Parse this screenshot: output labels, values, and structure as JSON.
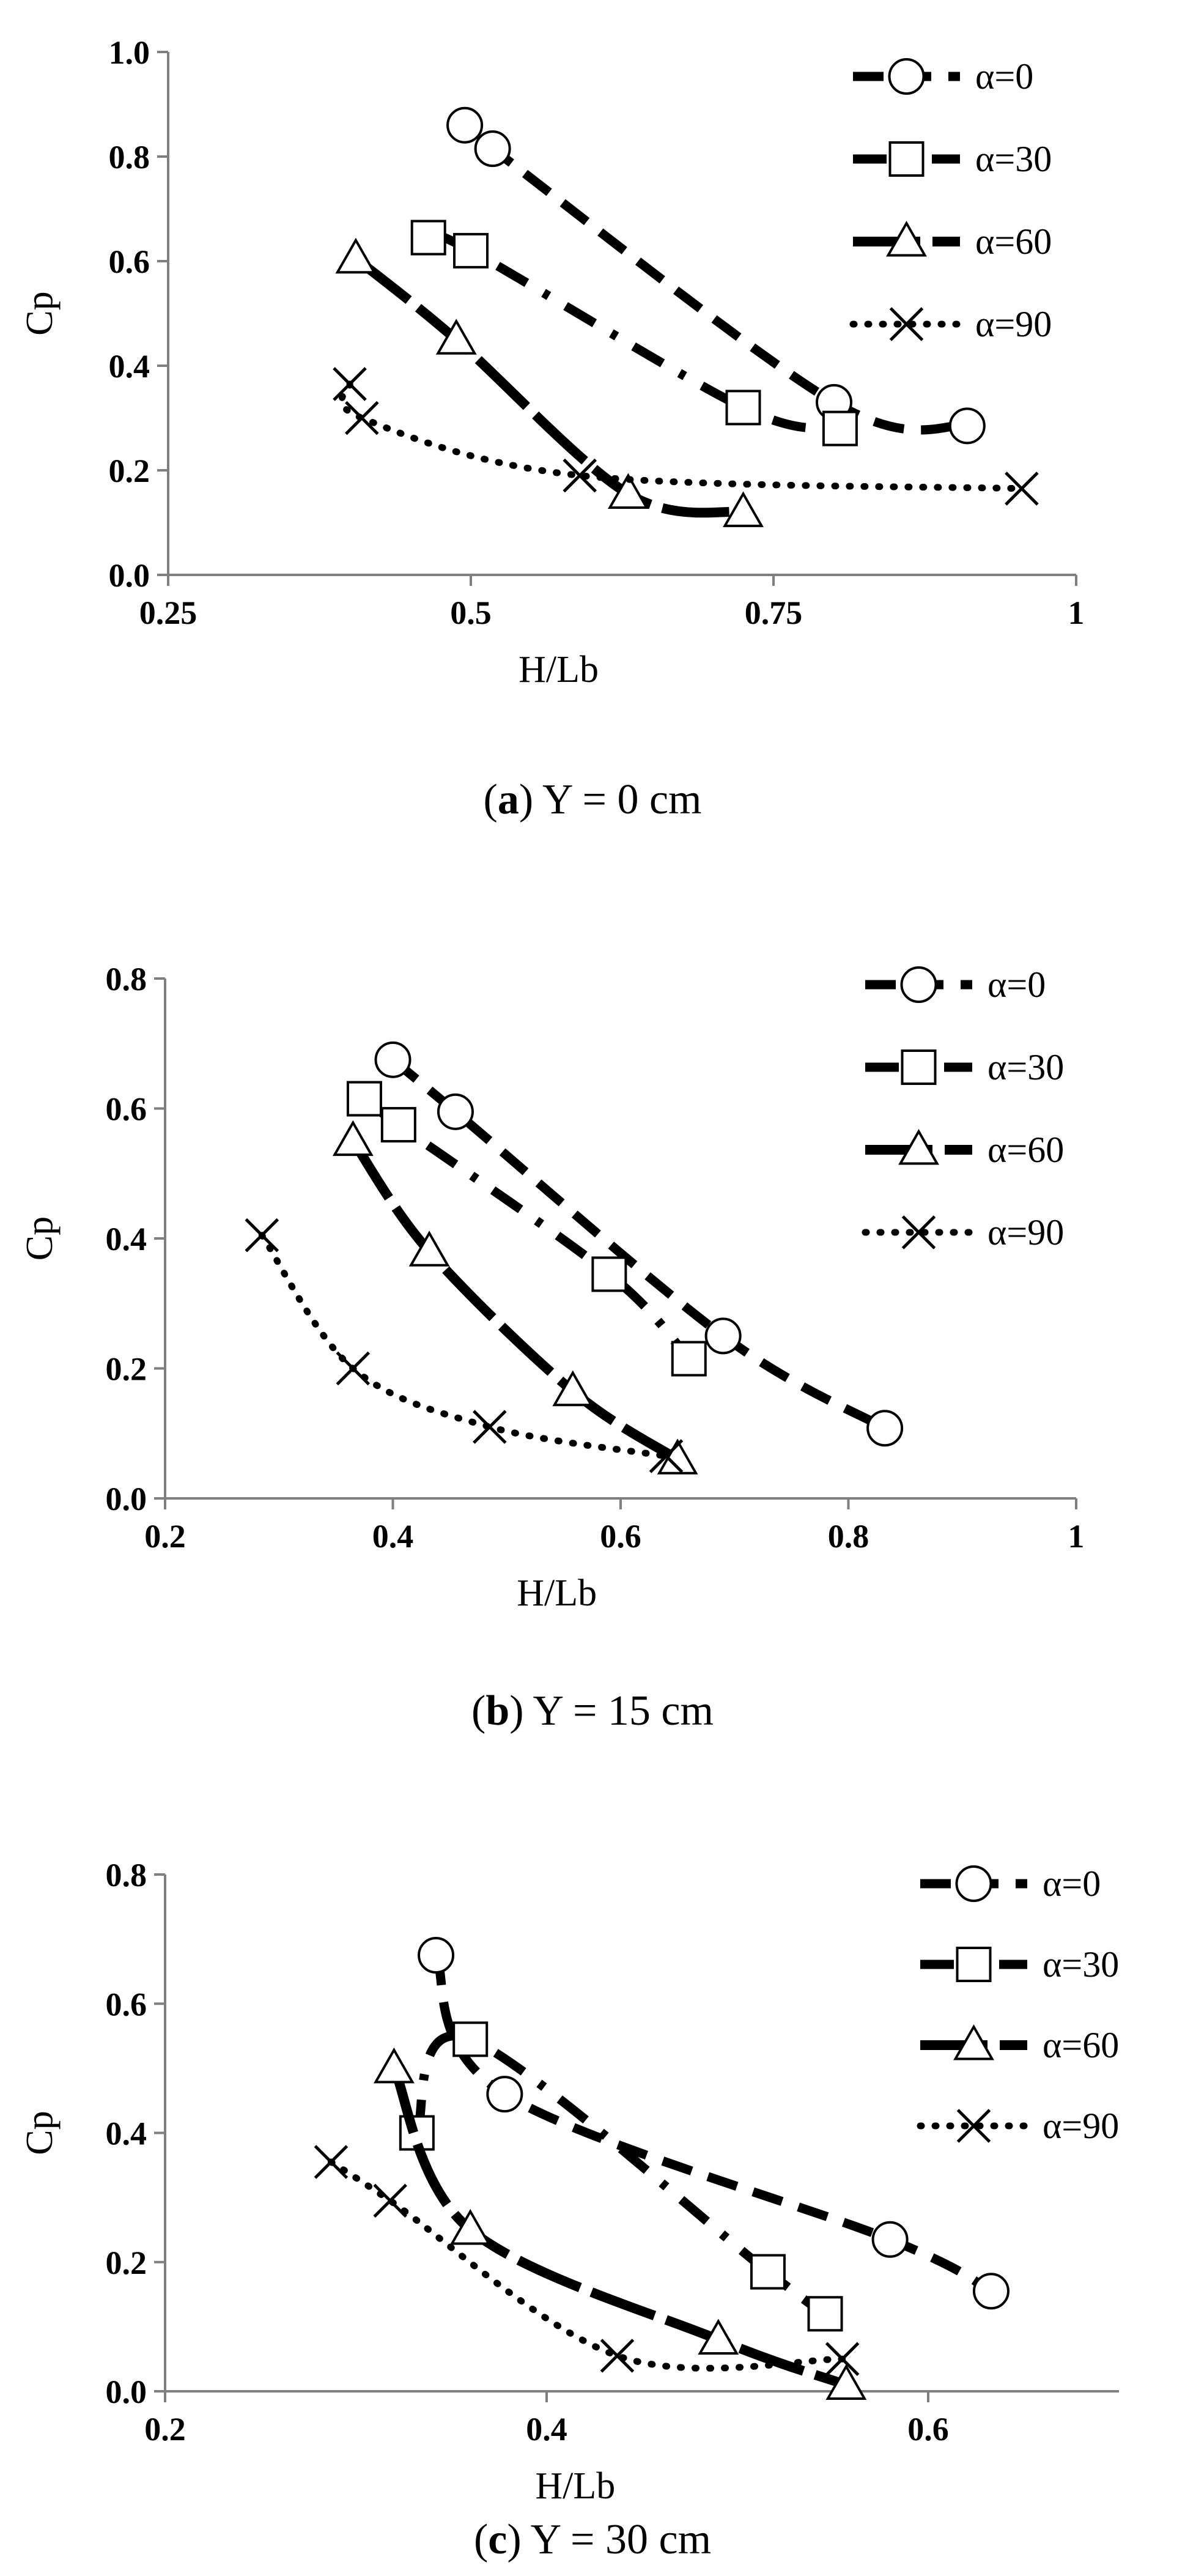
{
  "chart_data": [
    {
      "type": "line",
      "caption": {
        "letter": "a",
        "text": " Y = 0 cm"
      },
      "xlabel": "H/Lb",
      "ylabel": "Cp",
      "xlim": [
        0.25,
        1
      ],
      "ylim": [
        0,
        1
      ],
      "xticks": [
        "0.25",
        "0.5",
        "0.75",
        "1"
      ],
      "yticks": [
        "0.0",
        "0.2",
        "0.4",
        "0.6",
        "0.8",
        "1.0"
      ],
      "xtick_values": [
        0.25,
        0.5,
        0.75,
        1
      ],
      "ytick_values": [
        0,
        0.2,
        0.4,
        0.6,
        0.8,
        1.0
      ],
      "grid": false,
      "legend_position": "top-right",
      "series": [
        {
          "name": "α=0",
          "marker": "circle",
          "line": "dashed",
          "points": [
            [
              0.495,
              0.86
            ],
            [
              0.518,
              0.815
            ],
            [
              0.8,
              0.33
            ],
            [
              0.91,
              0.285
            ]
          ]
        },
        {
          "name": "α=30",
          "marker": "square",
          "line": "dashdot",
          "points": [
            [
              0.465,
              0.645
            ],
            [
              0.5,
              0.62
            ],
            [
              0.725,
              0.32
            ],
            [
              0.805,
              0.28
            ]
          ]
        },
        {
          "name": "α=60",
          "marker": "triangle",
          "line": "longdash",
          "points": [
            [
              0.405,
              0.605
            ],
            [
              0.488,
              0.45
            ],
            [
              0.63,
              0.155
            ],
            [
              0.725,
              0.12
            ]
          ]
        },
        {
          "name": "α=90",
          "marker": "x",
          "line": "dotted",
          "points": [
            [
              0.4,
              0.365
            ],
            [
              0.41,
              0.3
            ],
            [
              0.59,
              0.19
            ],
            [
              0.955,
              0.165
            ]
          ]
        }
      ]
    },
    {
      "type": "line",
      "caption": {
        "letter": "b",
        "text": " Y = 15 cm"
      },
      "xlabel": "H/Lb",
      "ylabel": "Cp",
      "xlim": [
        0.2,
        1
      ],
      "ylim": [
        0,
        0.8
      ],
      "xticks": [
        "0.2",
        "0.4",
        "0.6",
        "0.8",
        "1"
      ],
      "yticks": [
        "0.0",
        "0.2",
        "0.4",
        "0.6",
        "0.8"
      ],
      "xtick_values": [
        0.2,
        0.4,
        0.6,
        0.8,
        1
      ],
      "ytick_values": [
        0,
        0.2,
        0.4,
        0.6,
        0.8
      ],
      "grid": false,
      "legend_position": "top-right",
      "series": [
        {
          "name": "α=0",
          "marker": "circle",
          "line": "dashed",
          "points": [
            [
              0.4,
              0.675
            ],
            [
              0.455,
              0.595
            ],
            [
              0.69,
              0.25
            ],
            [
              0.832,
              0.108
            ]
          ]
        },
        {
          "name": "α=30",
          "marker": "square",
          "line": "dashdot",
          "points": [
            [
              0.375,
              0.615
            ],
            [
              0.405,
              0.575
            ],
            [
              0.59,
              0.345
            ],
            [
              0.66,
              0.215
            ]
          ]
        },
        {
          "name": "α=60",
          "marker": "triangle",
          "line": "longdash",
          "points": [
            [
              0.365,
              0.55
            ],
            [
              0.432,
              0.38
            ],
            [
              0.558,
              0.165
            ],
            [
              0.65,
              0.06
            ]
          ]
        },
        {
          "name": "α=90",
          "marker": "x",
          "line": "dotted",
          "points": [
            [
              0.285,
              0.405
            ],
            [
              0.365,
              0.2
            ],
            [
              0.485,
              0.11
            ],
            [
              0.64,
              0.065
            ]
          ]
        }
      ]
    },
    {
      "type": "line",
      "caption": {
        "letter": "c",
        "text": " Y = 30 cm"
      },
      "xlabel": "H/Lb",
      "ylabel": "Cp",
      "xlim": [
        0.2,
        0.7
      ],
      "ylim": [
        0,
        0.8
      ],
      "xticks": [
        "0.2",
        "0.4",
        "0.6"
      ],
      "yticks": [
        "0.0",
        "0.2",
        "0.4",
        "0.6",
        "0.8"
      ],
      "xtick_values": [
        0.2,
        0.4,
        0.6
      ],
      "ytick_values": [
        0,
        0.2,
        0.4,
        0.6,
        0.8
      ],
      "grid": false,
      "legend_position": "top-right",
      "series": [
        {
          "name": "α=0",
          "marker": "circle",
          "line": "dashed",
          "points": [
            [
              0.342,
              0.675
            ],
            [
              0.378,
              0.46
            ],
            [
              0.58,
              0.235
            ],
            [
              0.633,
              0.155
            ]
          ]
        },
        {
          "name": "α=30",
          "marker": "square",
          "line": "dashdot",
          "points": [
            [
              0.332,
              0.4
            ],
            [
              0.36,
              0.545
            ],
            [
              0.516,
              0.185
            ],
            [
              0.546,
              0.12
            ]
          ]
        },
        {
          "name": "α=60",
          "marker": "triangle",
          "line": "longdash",
          "points": [
            [
              0.32,
              0.5
            ],
            [
              0.36,
              0.25
            ],
            [
              0.49,
              0.08
            ],
            [
              0.557,
              0.01
            ]
          ]
        },
        {
          "name": "α=90",
          "marker": "x",
          "line": "dotted",
          "points": [
            [
              0.287,
              0.355
            ],
            [
              0.318,
              0.295
            ],
            [
              0.437,
              0.055
            ],
            [
              0.555,
              0.05
            ]
          ]
        }
      ]
    }
  ]
}
